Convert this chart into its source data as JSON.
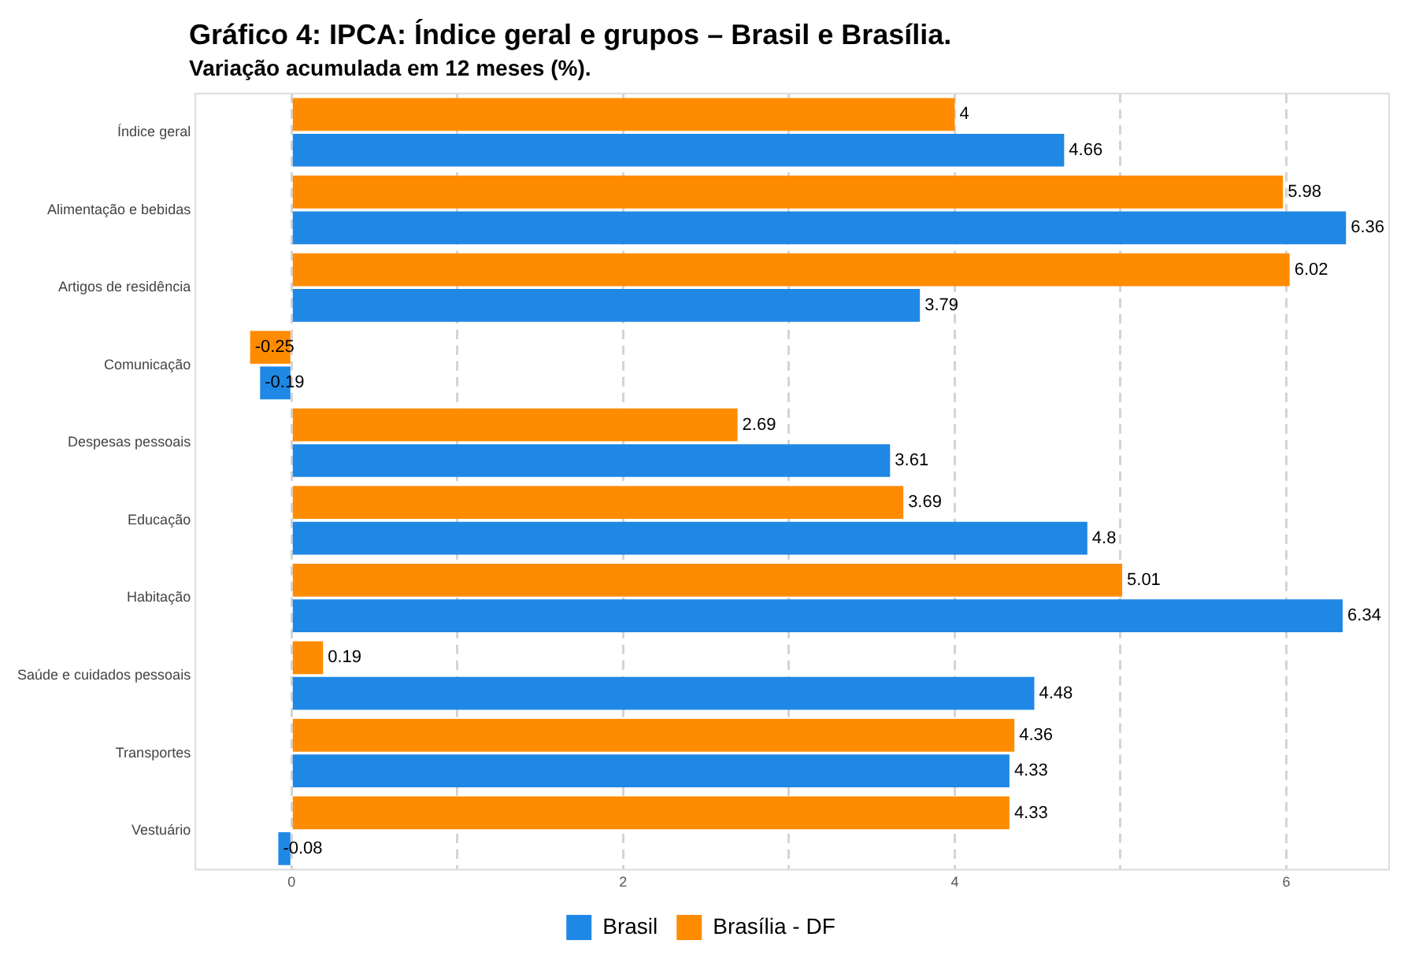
{
  "chart_data": {
    "type": "bar",
    "orientation": "horizontal",
    "title": "Gráfico 4: IPCA: Índice geral e grupos – Brasil e Brasília.",
    "subtitle": "Variação acumulada em 12 meses (%).",
    "categories": [
      "Índice geral",
      "Alimentação e bebidas",
      "Artigos de residência",
      "Comunicação",
      "Despesas pessoais",
      "Educação",
      "Habitação",
      "Saúde e cuidados pessoais",
      "Transportes",
      "Vestuário"
    ],
    "series": [
      {
        "name": "Brasília - DF",
        "color": "#ff8c00",
        "values": [
          4,
          5.98,
          6.02,
          -0.25,
          2.69,
          3.69,
          5.01,
          0.19,
          4.36,
          4.33
        ]
      },
      {
        "name": "Brasil",
        "color": "#1f88e5",
        "values": [
          4.66,
          6.36,
          3.79,
          -0.19,
          3.61,
          4.8,
          6.34,
          4.48,
          4.33,
          -0.08
        ]
      }
    ],
    "xlim": [
      -0.58,
      6.62
    ],
    "xticks": [
      0,
      {
        "value": 1,
        "label": null
      },
      2,
      {
        "value": 3,
        "label": null
      },
      4,
      {
        "value": 5,
        "label": null
      },
      6
    ],
    "grid": "x",
    "legend": "bottom",
    "data_labels": true
  }
}
